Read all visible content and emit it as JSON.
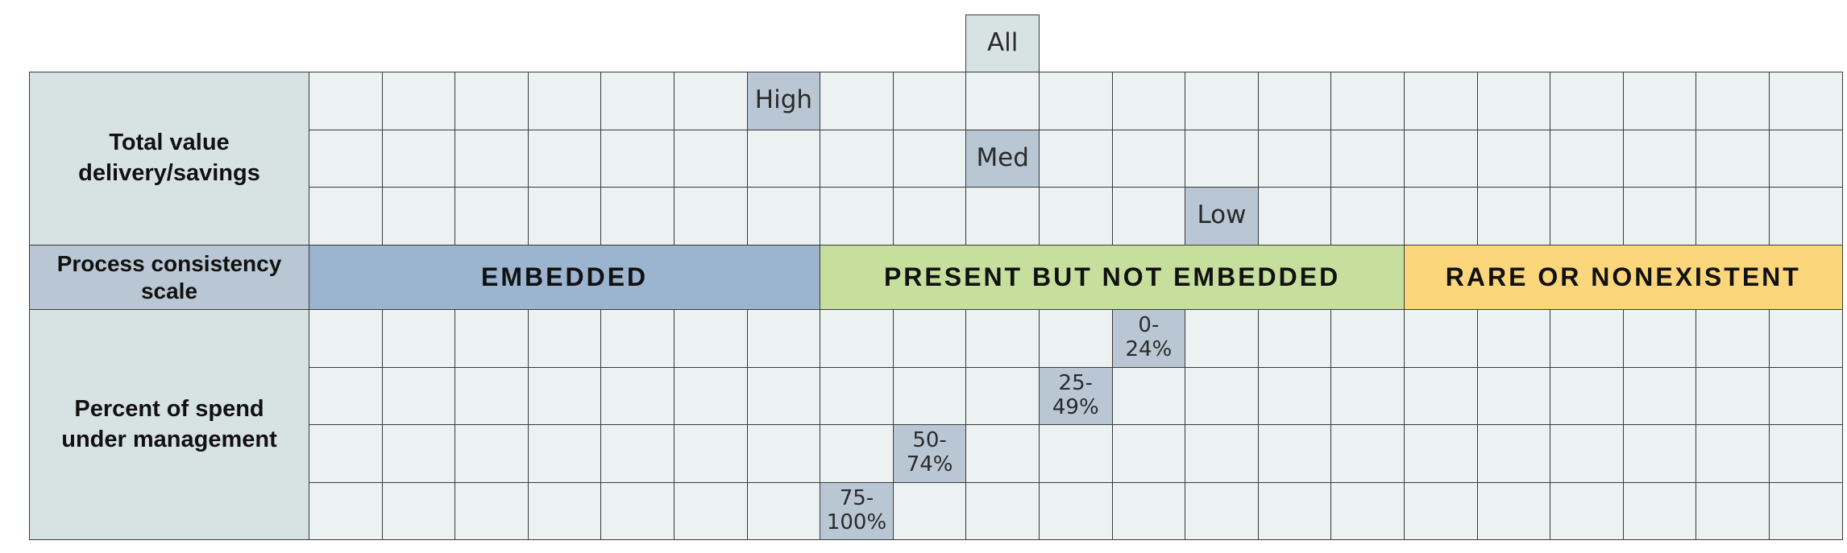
{
  "header_tag": {
    "label": "All"
  },
  "rows": {
    "total_value": "Total value delivery/savings",
    "process_scale": "Process consistency scale",
    "percent_spend": "Percent of spend under management"
  },
  "value_levels": [
    {
      "label": "High",
      "column": 7
    },
    {
      "label": "Med",
      "column": 10
    },
    {
      "label": "Low",
      "column": 13
    }
  ],
  "consistency_bands": [
    {
      "label": "EMBEDDED",
      "color": "#9bb4cf",
      "columns": [
        1,
        7
      ]
    },
    {
      "label": "PRESENT BUT NOT EMBEDDED",
      "color": "#c6df9c",
      "columns": [
        8,
        15
      ]
    },
    {
      "label": "RARE OR NONEXISTENT",
      "color": "#fcd67a",
      "columns": [
        16,
        21
      ]
    }
  ],
  "spend_levels": [
    {
      "label": "0-\n24%",
      "column": 12
    },
    {
      "label": "25-\n49%",
      "column": 11
    },
    {
      "label": "50-\n74%",
      "column": 9
    },
    {
      "label": "75-\n100%",
      "column": 8
    }
  ],
  "grid": {
    "columns": 21,
    "all_column": 10
  },
  "colors": {
    "cell": "#ecf1f1",
    "marker": "#b8c7d3",
    "label_bg": "#d7e3e3",
    "grid_line": "#3a3a3a"
  }
}
